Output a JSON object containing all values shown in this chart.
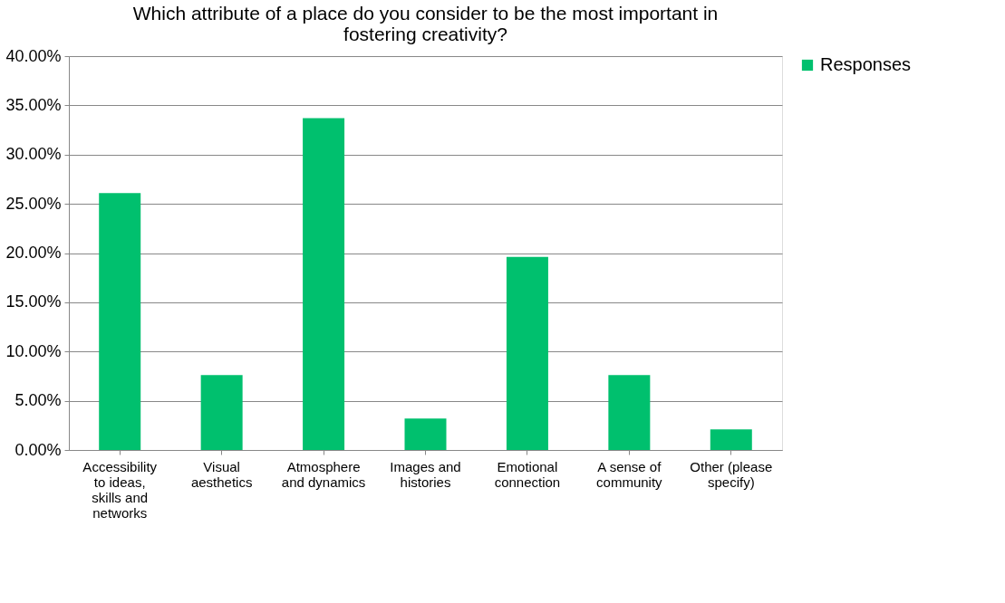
{
  "chart_data": {
    "type": "bar",
    "title": "Which attribute of a place do you consider to be the most important in fostering creativity?",
    "categories": [
      "Accessibility to ideas, skills and networks",
      "Visual aesthetics",
      "Atmosphere and dynamics",
      "Images and histories",
      "Emotional connection",
      "A sense of community",
      "Other (please specify)"
    ],
    "series": [
      {
        "name": "Responses",
        "color": "#00c06e",
        "values": [
          26.1,
          7.6,
          33.7,
          3.2,
          19.6,
          7.6,
          2.1
        ]
      }
    ],
    "ylim": [
      0,
      40
    ],
    "yticks": [
      {
        "value": 0,
        "label": "0.00%"
      },
      {
        "value": 5,
        "label": "5.00%"
      },
      {
        "value": 10,
        "label": "10.00%"
      },
      {
        "value": 15,
        "label": "15.00%"
      },
      {
        "value": 20,
        "label": "20.00%"
      },
      {
        "value": 25,
        "label": "25.00%"
      },
      {
        "value": 30,
        "label": "30.00%"
      },
      {
        "value": 35,
        "label": "35.00%"
      },
      {
        "value": 40,
        "label": "40.00%"
      }
    ],
    "grid": "y",
    "legend": "right"
  }
}
